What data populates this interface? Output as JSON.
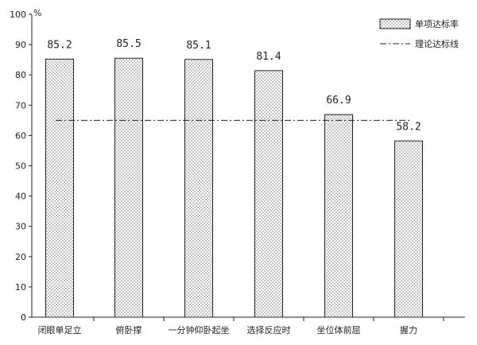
{
  "chart_data": {
    "type": "bar",
    "unit_label": "%",
    "categories": [
      "闭眼单足立",
      "俯卧撑",
      "一分钟仰卧起坐",
      "选择反应时",
      "坐位体前屈",
      "握力"
    ],
    "series": [
      {
        "name": "单项达标率",
        "values": [
          85.2,
          85.5,
          85.1,
          81.4,
          66.9,
          58.2
        ]
      }
    ],
    "value_labels": [
      "85.2",
      "85.5",
      "85.1",
      "81.4",
      "66.9",
      "58.2"
    ],
    "reference_line": {
      "name": "理论达标线",
      "value": 65,
      "style": "dash-dot"
    },
    "ylim": [
      0,
      100
    ],
    "yticks": [
      0,
      10,
      20,
      30,
      40,
      50,
      60,
      70,
      80,
      90,
      100
    ],
    "legend_position": "top-right",
    "grid": false,
    "bar_fill": "dotted",
    "colors": {
      "axis": "#222222",
      "bar_outline": "#222222",
      "dots": "#333333",
      "background": "#ffffff"
    }
  }
}
